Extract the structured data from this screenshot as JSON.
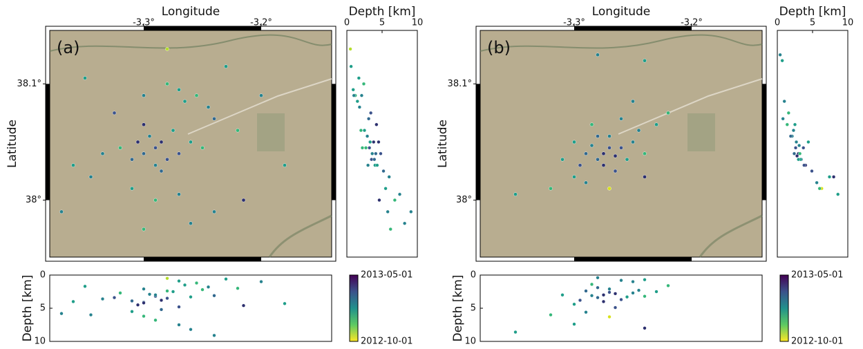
{
  "chart_data": [
    {
      "type": "scatter",
      "panel_label": "(a)",
      "xlabel": "Longitude",
      "ylabel": "Latitude",
      "depth_label": "Depth [km]",
      "xlim": [
        -3.38,
        -3.14
      ],
      "ylim": [
        37.951,
        38.146
      ],
      "xticks": [
        {
          "value": -3.3,
          "label": "-3.3°"
        },
        {
          "value": -3.2,
          "label": "-3.2°"
        }
      ],
      "yticks": [
        {
          "value": 38.1,
          "label": "38.1°"
        },
        {
          "value": 38,
          "label": "38°"
        }
      ],
      "depthlim": [
        0,
        10
      ],
      "depthticks": [
        0,
        5,
        10
      ],
      "colorbar": {
        "top": "2013-05-01",
        "bottom": "2012-10-01",
        "colors": [
          "#440154",
          "#3b528b",
          "#21918c",
          "#5ec962",
          "#fde725"
        ]
      },
      "x": [
        -3.29,
        -3.285,
        -3.3,
        -3.295,
        -3.28,
        -3.305,
        -3.275,
        -3.31,
        -3.27,
        -3.29,
        -3.32,
        -3.26,
        -3.3,
        -3.285,
        -3.335,
        -3.25,
        -3.265,
        -3.255,
        -3.245,
        -3.27,
        -3.28,
        -3.24,
        -3.345,
        -3.31,
        -3.29,
        -3.27,
        -3.36,
        -3.22,
        -3.2,
        -3.23,
        -3.325,
        -3.3,
        -3.35,
        -3.26,
        -3.3,
        -3.18,
        -3.37,
        -3.28,
        -3.24,
        -3.215
      ],
      "y": [
        38.045,
        38.05,
        38.04,
        38.055,
        38.035,
        38.05,
        38.06,
        38.035,
        38.04,
        38.03,
        38.045,
        38.05,
        38.065,
        38.025,
        38.04,
        38.045,
        38.085,
        38.09,
        38.08,
        38.095,
        38.1,
        38.07,
        38.02,
        38.01,
        38.0,
        38.005,
        38.03,
        38.06,
        38.09,
        38.115,
        38.075,
        38.09,
        38.105,
        37.98,
        37.975,
        38.03,
        37.99,
        38.13,
        37.99,
        38.0
      ],
      "depth": [
        3.2,
        3.8,
        4.1,
        2.9,
        3.5,
        4.5,
        2.5,
        3.9,
        4.8,
        3.0,
        2.7,
        3.3,
        4.2,
        5.2,
        3.6,
        2.2,
        1.5,
        1.2,
        1.8,
        0.9,
        2.4,
        3.1,
        6.0,
        5.5,
        6.8,
        7.5,
        4.0,
        2.0,
        1.0,
        0.6,
        3.4,
        2.1,
        1.7,
        8.2,
        6.2,
        4.3,
        5.8,
        0.5,
        9.1,
        4.6
      ],
      "colors": [
        "#3b528b",
        "#2c2f6e",
        "#31688e",
        "#26828e",
        "#3b528b",
        "#2c2f6e",
        "#1f9e89",
        "#31688e",
        "#3b528b",
        "#26828e",
        "#35b779",
        "#1f9e89",
        "#2c2f6e",
        "#31688e",
        "#26828e",
        "#35b779",
        "#1f9e89",
        "#35b779",
        "#26828e",
        "#1f9e89",
        "#35b779",
        "#31688e",
        "#26828e",
        "#1f9e89",
        "#35b779",
        "#26828e",
        "#1f9e89",
        "#35b779",
        "#26828e",
        "#1f9e89",
        "#3b528b",
        "#26828e",
        "#1f9e89",
        "#26828e",
        "#35b779",
        "#1f9e89",
        "#26828e",
        "#b5de2b",
        "#26828e",
        "#2c2f6e"
      ]
    },
    {
      "type": "scatter",
      "panel_label": "(b)",
      "xlabel": "Longitude",
      "ylabel": "Latitude",
      "depth_label": "Depth [km]",
      "xlim": [
        -3.38,
        -3.14
      ],
      "ylim": [
        37.951,
        38.146
      ],
      "xticks": [
        {
          "value": -3.3,
          "label": "-3.3°"
        },
        {
          "value": -3.2,
          "label": "-3.2°"
        }
      ],
      "yticks": [
        {
          "value": 38.1,
          "label": "38.1°"
        },
        {
          "value": 38,
          "label": "38°"
        }
      ],
      "depthlim": [
        0,
        10
      ],
      "depthticks": [
        0,
        5,
        10
      ],
      "colorbar": {
        "top": "2013-05-01",
        "bottom": "2012-10-01",
        "colors": [
          "#440154",
          "#3b528b",
          "#21918c",
          "#5ec962",
          "#fde725"
        ]
      },
      "x": [
        -3.275,
        -3.27,
        -3.28,
        -3.265,
        -3.285,
        -3.26,
        -3.29,
        -3.275,
        -3.27,
        -3.255,
        -3.295,
        -3.28,
        -3.25,
        -3.3,
        -3.265,
        -3.24,
        -3.245,
        -3.31,
        -3.285,
        -3.26,
        -3.23,
        -3.29,
        -3.27,
        -3.3,
        -3.32,
        -3.25,
        -3.24,
        -3.28,
        -3.22,
        -3.24,
        -3.35
      ],
      "y": [
        38.04,
        38.045,
        38.035,
        38.038,
        38.047,
        38.045,
        38.04,
        38.03,
        38.055,
        38.035,
        38.03,
        38.055,
        38.05,
        38.05,
        38.025,
        38.04,
        38.06,
        38.035,
        38.065,
        38.07,
        38.065,
        38.015,
        38.01,
        38.02,
        38.01,
        38.085,
        38.12,
        38.125,
        38.075,
        38.02,
        38.005
      ],
      "depth": [
        3.0,
        2.6,
        3.4,
        2.8,
        3.1,
        3.7,
        2.4,
        4.0,
        2.1,
        3.3,
        3.8,
        1.9,
        2.7,
        4.4,
        4.9,
        3.2,
        2.3,
        3.0,
        1.4,
        0.8,
        2.5,
        5.6,
        6.3,
        7.4,
        6.0,
        1.0,
        0.7,
        0.4,
        1.6,
        8.0,
        8.6
      ],
      "colors": [
        "#2c2f6e",
        "#3b528b",
        "#31688e",
        "#2c2f6e",
        "#26828e",
        "#3b528b",
        "#31688e",
        "#2c2f6e",
        "#26828e",
        "#1f9e89",
        "#3b528b",
        "#31688e",
        "#26828e",
        "#1f9e89",
        "#3b528b",
        "#35b779",
        "#26828e",
        "#1f9e89",
        "#35b779",
        "#26828e",
        "#1f9e89",
        "#26828e",
        "#d8e219",
        "#1f9e89",
        "#35b779",
        "#26828e",
        "#1f9e89",
        "#26828e",
        "#35b779",
        "#2c2f6e",
        "#1f9e89"
      ]
    }
  ]
}
